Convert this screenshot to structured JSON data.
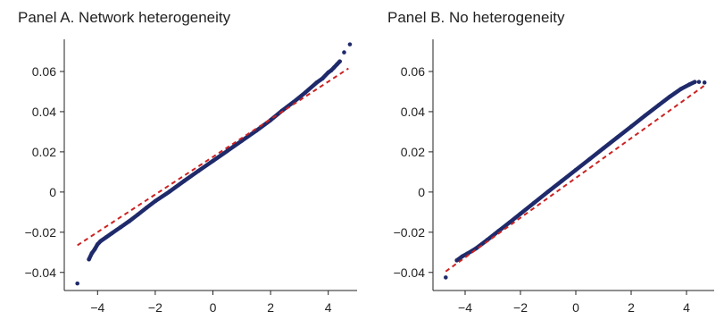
{
  "chart_data": [
    {
      "type": "scatter",
      "title": "Panel A. Network heterogeneity",
      "xlabel": "",
      "ylabel": "",
      "xlim": [
        -5.0,
        5.0
      ],
      "ylim": [
        -0.049,
        0.076
      ],
      "xticks": [
        -4,
        -2,
        0,
        2,
        4
      ],
      "xtick_labels": [
        "−4",
        "−2",
        "0",
        "2",
        "4"
      ],
      "yticks": [
        -0.04,
        -0.02,
        0,
        0.02,
        0.04,
        0.06
      ],
      "ytick_labels": [
        "−0.04",
        "−0.02",
        "0",
        "0.02",
        "0.04",
        "0.06"
      ],
      "grid": false,
      "series": [
        {
          "kind": "points",
          "color": "#1f2a6b",
          "x": [
            -4.7,
            -4.3,
            -4.2,
            -4.1,
            -4.0,
            -3.9,
            -3.7,
            -3.5,
            -3.2,
            -2.9,
            -2.6,
            -2.3,
            -2.0,
            -1.5,
            -1.0,
            -0.5,
            0.0,
            0.5,
            1.0,
            1.5,
            2.0,
            2.4,
            2.8,
            3.2,
            3.6,
            3.8,
            4.0,
            4.1,
            4.2,
            4.3,
            4.4,
            4.55,
            4.75
          ],
          "y": [
            -0.0455,
            -0.0335,
            -0.0305,
            -0.0285,
            -0.026,
            -0.0245,
            -0.0225,
            -0.0205,
            -0.0175,
            -0.0145,
            -0.0112,
            -0.0078,
            -0.0045,
            0.0003,
            0.0055,
            0.0105,
            0.0155,
            0.0205,
            0.0255,
            0.0305,
            0.0358,
            0.0405,
            0.0448,
            0.0495,
            0.0545,
            0.0565,
            0.0595,
            0.0605,
            0.062,
            0.0635,
            0.065,
            0.0695,
            0.0735
          ]
        },
        {
          "kind": "reference-line",
          "color": "#cc2222",
          "x": [
            -4.7,
            4.7
          ],
          "y": [
            -0.0265,
            0.0615
          ]
        }
      ]
    },
    {
      "type": "scatter",
      "title": "Panel B. No heterogeneity",
      "xlabel": "",
      "ylabel": "",
      "xlim": [
        -5.0,
        5.0
      ],
      "ylim": [
        -0.049,
        0.076
      ],
      "xticks": [
        -4,
        -2,
        0,
        2,
        4
      ],
      "xtick_labels": [
        "−4",
        "−2",
        "0",
        "2",
        "4"
      ],
      "yticks": [
        -0.04,
        -0.02,
        0,
        0.02,
        0.04,
        0.06
      ],
      "ytick_labels": [
        "−0.04",
        "−0.02",
        "0",
        "0.02",
        "0.04",
        "0.06"
      ],
      "grid": false,
      "series": [
        {
          "kind": "points",
          "color": "#1f2a6b",
          "x": [
            -4.7,
            -4.3,
            -4.1,
            -3.9,
            -3.6,
            -3.2,
            -2.8,
            -2.4,
            -2.0,
            -1.5,
            -1.0,
            -0.5,
            0.0,
            0.5,
            1.0,
            1.5,
            2.0,
            2.5,
            3.0,
            3.4,
            3.8,
            4.1,
            4.3,
            4.45,
            4.65
          ],
          "y": [
            -0.0425,
            -0.034,
            -0.032,
            -0.0305,
            -0.028,
            -0.0238,
            -0.0195,
            -0.0152,
            -0.0108,
            -0.0053,
            0.0002,
            0.0056,
            0.011,
            0.0164,
            0.0218,
            0.0272,
            0.0326,
            0.038,
            0.0433,
            0.0475,
            0.0513,
            0.0535,
            0.0548,
            0.0548,
            0.0545
          ]
        },
        {
          "kind": "reference-line",
          "color": "#cc2222",
          "x": [
            -4.7,
            4.7
          ],
          "y": [
            -0.0395,
            0.0535
          ]
        }
      ]
    }
  ]
}
